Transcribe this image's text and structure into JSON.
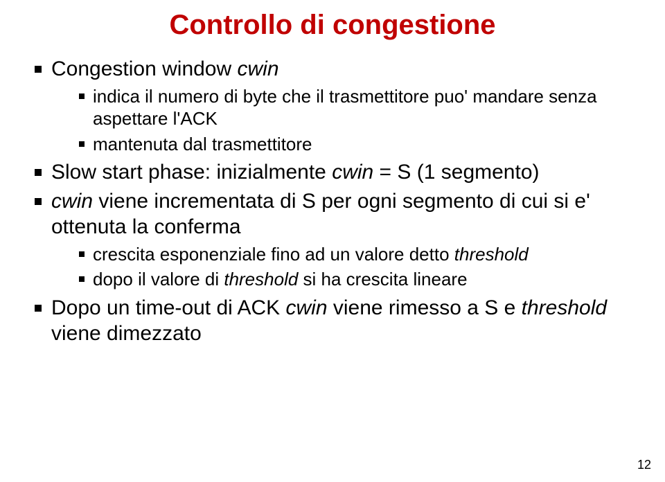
{
  "title": {
    "text": "Controllo di congestione",
    "color": "#c00000",
    "fontsize": 40
  },
  "body_fontsize_l1": 30,
  "body_fontsize_l2": 26,
  "bullets": [
    {
      "runs": [
        {
          "t": "Congestion window ",
          "i": false
        },
        {
          "t": "cwin",
          "i": true
        }
      ],
      "children": [
        {
          "runs": [
            {
              "t": "indica il numero di byte che il trasmettitore puo' mandare senza aspettare l'ACK",
              "i": false
            }
          ]
        },
        {
          "runs": [
            {
              "t": "mantenuta dal trasmettitore",
              "i": false
            }
          ]
        }
      ]
    },
    {
      "runs": [
        {
          "t": "Slow start phase: inizialmente ",
          "i": false
        },
        {
          "t": "cwin",
          "i": true
        },
        {
          "t": " = S  (1 segmento)",
          "i": false
        }
      ]
    },
    {
      "runs": [
        {
          "t": "cwin",
          "i": true
        },
        {
          "t": " viene incrementata di S per ogni segmento di cui si e' ottenuta la conferma",
          "i": false
        }
      ],
      "children": [
        {
          "runs": [
            {
              "t": "crescita esponenziale fino ad un valore detto ",
              "i": false
            },
            {
              "t": "threshold",
              "i": true
            }
          ]
        },
        {
          "runs": [
            {
              "t": "dopo il valore di ",
              "i": false
            },
            {
              "t": "threshold",
              "i": true
            },
            {
              "t": " si ha crescita lineare",
              "i": false
            }
          ]
        }
      ]
    },
    {
      "runs": [
        {
          "t": "Dopo un time-out di ACK ",
          "i": false
        },
        {
          "t": "cwin",
          "i": true
        },
        {
          "t": " viene rimesso a S e ",
          "i": false
        },
        {
          "t": "threshold",
          "i": true
        },
        {
          "t": " viene dimezzato",
          "i": false
        }
      ]
    }
  ],
  "page_number": {
    "text": "12",
    "fontsize": 18,
    "color": "#000000"
  }
}
